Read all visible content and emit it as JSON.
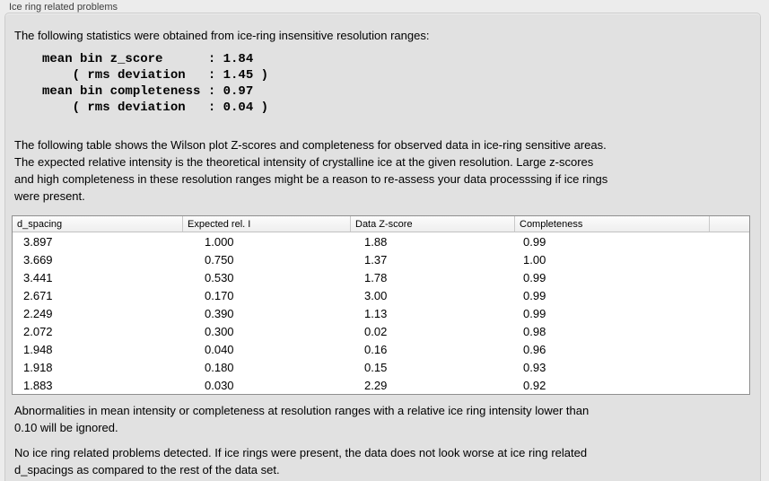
{
  "panel": {
    "group_label": "Ice ring related problems"
  },
  "stats_section": {
    "intro": "The following statistics were obtained from ice-ring insensitive resolution ranges:",
    "lines": [
      "mean bin z_score      : 1.84",
      "    ( rms deviation   : 1.45 )",
      "mean bin completeness : 0.97",
      "    ( rms deviation   : 0.04 )"
    ]
  },
  "table_section": {
    "intro_lines": [
      "The following table shows the Wilson plot Z-scores and completeness for observed data in ice-ring sensitive areas.",
      "The expected relative intensity is the theoretical intensity of crystalline ice at the given resolution. Large z-scores",
      "and high completeness in these resolution ranges might be a reason to re-assess your data processsing if ice rings",
      "were present."
    ],
    "table": {
      "columns": [
        "d_spacing",
        "Expected rel. I",
        "Data Z-score",
        "Completeness"
      ],
      "rows": [
        [
          "3.897",
          "1.000",
          "1.88",
          "0.99"
        ],
        [
          "3.669",
          "0.750",
          "1.37",
          "1.00"
        ],
        [
          "3.441",
          "0.530",
          "1.78",
          "0.99"
        ],
        [
          "2.671",
          "0.170",
          "3.00",
          "0.99"
        ],
        [
          "2.249",
          "0.390",
          "1.13",
          "0.99"
        ],
        [
          "2.072",
          "0.300",
          "0.02",
          "0.98"
        ],
        [
          "1.948",
          "0.040",
          "0.16",
          "0.96"
        ],
        [
          "1.918",
          "0.180",
          "0.15",
          "0.93"
        ],
        [
          "1.883",
          "0.030",
          "2.29",
          "0.92"
        ]
      ]
    }
  },
  "footer": {
    "ignore_note_lines": [
      "Abnormalities in mean intensity or completeness at resolution ranges with a relative ice ring intensity lower than",
      "0.10 will be ignored."
    ],
    "conclusion_lines": [
      "No ice ring related problems detected. If ice rings were present, the data does not look worse at ice ring related",
      "d_spacings as compared to the rest of the data set."
    ]
  },
  "colors": {
    "page_bg": "#ececec",
    "groupbox_bg": "#e1e1e1",
    "table_bg": "#ffffff",
    "text": "#000000"
  }
}
